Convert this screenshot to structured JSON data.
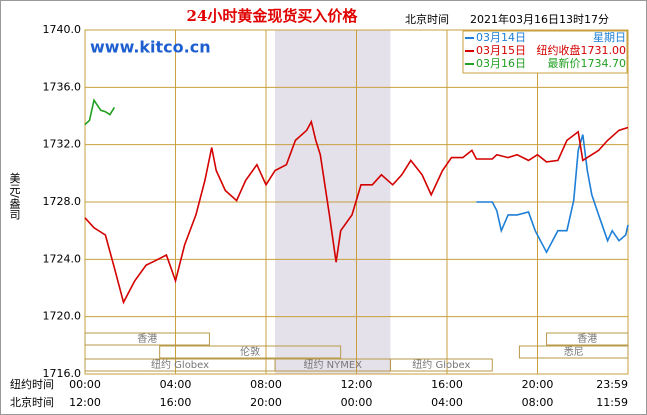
{
  "chart_data": {
    "type": "line",
    "title": "24小时黄金现货买入价格",
    "timestamp_label": "北京时间",
    "timestamp": "2021年03月16日13时17分",
    "watermark": "www.kitco.cn",
    "ylabel": "美元/盎司",
    "xlabel": "纽约时间",
    "x2label": "北京时间",
    "xlim": [
      0,
      24
    ],
    "ylim": [
      1716,
      1740
    ],
    "yticks": [
      {
        "value": 1716,
        "label": "1716.0"
      },
      {
        "value": 1720,
        "label": "1720.0"
      },
      {
        "value": 1724,
        "label": "1724.0"
      },
      {
        "value": 1728,
        "label": "1728.0"
      },
      {
        "value": 1732,
        "label": "1732.0"
      },
      {
        "value": 1736,
        "label": "1736.0"
      },
      {
        "value": 1740,
        "label": "1740.0"
      }
    ],
    "xticks": [
      {
        "value": 0,
        "label": "00:00"
      },
      {
        "value": 4,
        "label": "04:00"
      },
      {
        "value": 8,
        "label": "08:00"
      },
      {
        "value": 12,
        "label": "12:00"
      },
      {
        "value": 16,
        "label": "16:00"
      },
      {
        "value": 20,
        "label": "20:00"
      },
      {
        "value": 24,
        "label": "23:59"
      }
    ],
    "x2ticks": [
      {
        "value": 0,
        "label": "12:00"
      },
      {
        "value": 4,
        "label": "16:00"
      },
      {
        "value": 8,
        "label": "20:00"
      },
      {
        "value": 12,
        "label": "00:00"
      },
      {
        "value": 16,
        "label": "04:00"
      },
      {
        "value": 20,
        "label": "08:00"
      },
      {
        "value": 24,
        "label": "11:59"
      }
    ],
    "grid": true,
    "series": [
      {
        "name": "03月14日",
        "note": "星期日",
        "color": "#1e7fd6",
        "x": [
          17.3,
          18,
          18.2,
          18.4,
          18.7,
          19.1,
          19.6,
          19.9,
          20.4,
          20.9,
          21.3,
          21.6,
          21.8,
          22,
          22.2,
          22.4,
          22.7,
          23.1,
          23.3,
          23.6,
          23.9,
          24
        ],
        "values": [
          1728.0,
          1728.0,
          1727.4,
          1726.0,
          1727.1,
          1727.1,
          1727.3,
          1726.0,
          1724.5,
          1726.0,
          1726.0,
          1728.1,
          1731.6,
          1732.7,
          1730.2,
          1728.5,
          1727.1,
          1725.3,
          1726.0,
          1725.3,
          1725.7,
          1726.4
        ]
      },
      {
        "name": "03月15日",
        "note": "纽约收盘1731.00",
        "color": "#d40000",
        "x": [
          0,
          0.4,
          0.9,
          1.3,
          1.7,
          2.2,
          2.7,
          3.1,
          3.6,
          4,
          4.4,
          4.9,
          5.3,
          5.6,
          5.8,
          6.2,
          6.7,
          7.1,
          7.6,
          8,
          8.4,
          8.9,
          9.3,
          9.8,
          10,
          10.2,
          10.4,
          10.8,
          11.1,
          11.3,
          11.8,
          12.2,
          12.7,
          13.1,
          13.6,
          14,
          14.4,
          14.9,
          15.3,
          15.8,
          16.2,
          16.7,
          17.1,
          17.3,
          18,
          18.2,
          18.7,
          19.1,
          19.6,
          20,
          20.4,
          20.9,
          21.3,
          21.8,
          22,
          22.4,
          22.7,
          23.1,
          23.6,
          24
        ],
        "values": [
          1726.9,
          1726.2,
          1725.7,
          1723.4,
          1721.0,
          1722.5,
          1723.6,
          1723.9,
          1724.3,
          1722.5,
          1725.0,
          1727.1,
          1729.5,
          1731.8,
          1730.2,
          1728.8,
          1728.1,
          1729.5,
          1730.6,
          1729.2,
          1730.2,
          1730.6,
          1732.3,
          1733.0,
          1733.6,
          1732.3,
          1731.3,
          1727.1,
          1723.8,
          1726.0,
          1727.1,
          1729.2,
          1729.2,
          1729.9,
          1729.2,
          1729.9,
          1730.9,
          1729.9,
          1728.5,
          1730.2,
          1731.1,
          1731.1,
          1731.6,
          1731.0,
          1731.0,
          1731.3,
          1731.1,
          1731.3,
          1730.9,
          1731.3,
          1730.8,
          1730.9,
          1732.3,
          1732.9,
          1730.9,
          1731.3,
          1731.6,
          1732.3,
          1733.0,
          1733.2
        ]
      },
      {
        "name": "03月16日",
        "note": "最新价1734.70",
        "color": "#20a020",
        "x": [
          0,
          0.2,
          0.4,
          0.7,
          0.9,
          1.1,
          1.3
        ],
        "values": [
          1733.4,
          1733.7,
          1735.1,
          1734.4,
          1734.3,
          1734.1,
          1734.6
        ]
      }
    ],
    "sessions": [
      {
        "label": "香港",
        "spans": [
          [
            0,
            5.5
          ],
          [
            20.4,
            24
          ]
        ]
      },
      {
        "label": "伦敦",
        "spans": [
          [
            3.3,
            11.3
          ]
        ]
      },
      {
        "label": "悉尼",
        "spans": [
          [
            19.2,
            24
          ]
        ]
      },
      {
        "label": "纽约 NYMEX",
        "spans": [
          [
            8.4,
            13.5
          ]
        ]
      },
      {
        "label": "纽约 Globex",
        "spans": [
          [
            0,
            8.4
          ],
          [
            13.5,
            18
          ]
        ]
      }
    ]
  }
}
